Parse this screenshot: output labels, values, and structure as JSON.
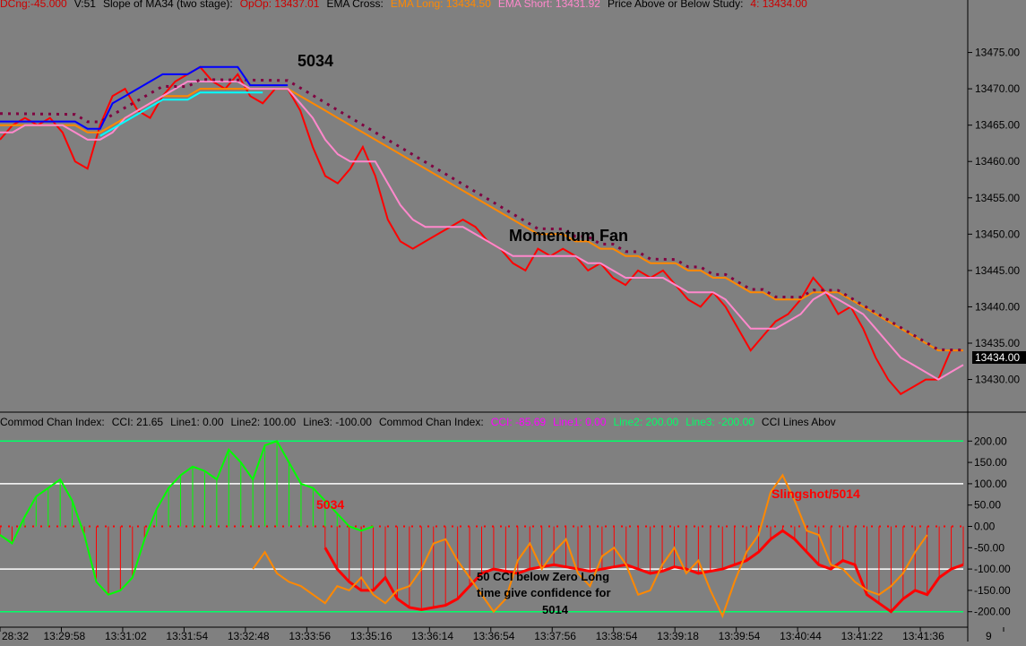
{
  "header_top": [
    {
      "text": "DCng:-45.000",
      "color": "#cc0000"
    },
    {
      "text": "V:51",
      "color": "#000000"
    },
    {
      "text": "Slope of MA34 (two stage):",
      "color": "#000000"
    },
    {
      "text": "OpOp: 13437.01",
      "color": "#cc0000"
    },
    {
      "text": "EMA Cross:",
      "color": "#000000"
    },
    {
      "text": "EMA Long: 13434.50",
      "color": "#ff8800"
    },
    {
      "text": "EMA Short: 13431.92",
      "color": "#ff88cc"
    },
    {
      "text": "Price Above or Below Study:",
      "color": "#000000"
    },
    {
      "text": "4: 13434.00",
      "color": "#cc0000"
    }
  ],
  "header_cci": [
    {
      "text": "Commod Chan Index:",
      "color": "#000000"
    },
    {
      "text": "CCI: 21.65",
      "color": "#000000"
    },
    {
      "text": "Line1: 0.00",
      "color": "#000000"
    },
    {
      "text": "Line2: 100.00",
      "color": "#000000"
    },
    {
      "text": "Line3: -100.00",
      "color": "#000000"
    },
    {
      "text": "Commod Chan Index:",
      "color": "#000000"
    },
    {
      "text": "CCI: -85.69",
      "color": "#ff00ff"
    },
    {
      "text": "Line1: 0.00",
      "color": "#ff00ff"
    },
    {
      "text": "Line2: 200.00",
      "color": "#00ff66"
    },
    {
      "text": "Line3: -200.00",
      "color": "#00ff66"
    },
    {
      "text": "CCI Lines Abov",
      "color": "#000000"
    }
  ],
  "colors": {
    "background": "#808080",
    "price": "#ff0000",
    "ema_long": "#ff8800",
    "ema_short": "#ff88cc",
    "slope_up": "#00ff00",
    "slope_strong": "#0000ff",
    "ma_cyan": "#00ffff",
    "dotted_ma": "#800040",
    "cci_line": "#ff0000",
    "cci_fast": "#ff8800",
    "cci_up": "#00ff00",
    "cci_down": "#ff00ff",
    "level_green": "#00ff66",
    "level_white": "#ffffff"
  },
  "chart_data": [
    {
      "type": "line",
      "title": "",
      "x_ticks": [
        "28:32",
        "13:29:58",
        "13:31:02",
        "13:31:54",
        "13:32:48",
        "13:33:56",
        "13:35:16",
        "13:36:14",
        "13:36:54",
        "13:37:56",
        "13:38:54",
        "13:39:18",
        "13:39:54",
        "13:40:44",
        "13:41:22",
        "13:41:36",
        "9"
      ],
      "y_ticks": [
        "13475.00",
        "13470.00",
        "13465.00",
        "13460.00",
        "13455.00",
        "13450.00",
        "13445.00",
        "13440.00",
        "13435.00",
        "13430.00"
      ],
      "ylim": [
        13426,
        13480
      ],
      "last_price_label": "13434.00",
      "annotations": [
        "5034",
        "Momentum Fan"
      ],
      "series": [
        {
          "name": "Price",
          "color": "#ff0000",
          "values": [
            13463,
            13465,
            13466,
            13465,
            13466,
            13464,
            13460,
            13459,
            13465,
            13469,
            13470,
            13467,
            13466,
            13469,
            13471,
            13472,
            13473,
            13471,
            13470,
            13472,
            13469,
            13468,
            13470,
            13470,
            13467,
            13462,
            13458,
            13457,
            13459,
            13462,
            13458,
            13452,
            13449,
            13448,
            13449,
            13450,
            13451,
            13452,
            13451,
            13449,
            13448,
            13446,
            13445,
            13448,
            13447,
            13448,
            13447,
            13445,
            13446,
            13444,
            13443,
            13445,
            13444,
            13445,
            13443,
            13441,
            13440,
            13442,
            13440,
            13437,
            13434,
            13436,
            13438,
            13439,
            13441,
            13444,
            13442,
            13439,
            13440,
            13437,
            13433,
            13430,
            13428,
            13429,
            13430,
            13430,
            13434,
            13434
          ]
        },
        {
          "name": "EMA Long",
          "color": "#ff8800",
          "values": [
            13465,
            13465,
            13465,
            13465,
            13465,
            13465,
            13465,
            13464,
            13464,
            13465,
            13466,
            13467,
            13468,
            13469,
            13469,
            13469,
            13470,
            13470,
            13470,
            13470,
            13470,
            13470,
            13470,
            13470,
            13469,
            13468,
            13467,
            13466,
            13465,
            13464,
            13463,
            13462,
            13461,
            13460,
            13459,
            13458,
            13457,
            13456,
            13455,
            13454,
            13453,
            13452,
            13451,
            13450,
            13450,
            13450,
            13449,
            13449,
            13448,
            13448,
            13447,
            13447,
            13446,
            13446,
            13446,
            13445,
            13445,
            13444,
            13444,
            13443,
            13442,
            13442,
            13441,
            13441,
            13441,
            13442,
            13442,
            13442,
            13441,
            13440,
            13439,
            13438,
            13437,
            13436,
            13435,
            13434,
            13434,
            13434
          ]
        },
        {
          "name": "EMA Short",
          "color": "#ff88cc",
          "values": [
            13464,
            13464,
            13465,
            13465,
            13465,
            13465,
            13464,
            13463,
            13463,
            13464,
            13466,
            13467,
            13468,
            13469,
            13470,
            13471,
            13471,
            13471,
            13471,
            13471,
            13470,
            13470,
            13470,
            13470,
            13468,
            13466,
            13463,
            13461,
            13460,
            13460,
            13460,
            13457,
            13454,
            13452,
            13451,
            13451,
            13451,
            13451,
            13450,
            13449,
            13448,
            13447,
            13447,
            13447,
            13447,
            13447,
            13447,
            13446,
            13446,
            13445,
            13444,
            13444,
            13444,
            13444,
            13443,
            13442,
            13442,
            13442,
            13441,
            13439,
            13437,
            13437,
            13437,
            13438,
            13439,
            13441,
            13442,
            13441,
            13440,
            13439,
            13437,
            13435,
            13433,
            13432,
            13431,
            13430,
            13431,
            13432
          ]
        }
      ]
    },
    {
      "type": "line",
      "title": "",
      "y_ticks": [
        "200.00",
        "150.00",
        "100.00",
        "50.00",
        "0.00",
        "-50.00",
        "-100.00",
        "-150.00",
        "-200.00"
      ],
      "ylim": [
        -230,
        230
      ],
      "levels": [
        200,
        100,
        0,
        -100,
        -200
      ],
      "annotations": [
        "5034",
        "50 CCI below Zero Long",
        "time give confidence for",
        "5014",
        "Slingshot/5014"
      ],
      "series": [
        {
          "name": "CCI",
          "color": "#ff0000",
          "values": [
            null,
            null,
            null,
            null,
            null,
            null,
            null,
            null,
            null,
            null,
            null,
            null,
            null,
            null,
            null,
            null,
            null,
            null,
            null,
            null,
            null,
            null,
            null,
            null,
            null,
            null,
            null,
            -50,
            -100,
            -130,
            -150,
            -150,
            -120,
            -170,
            -190,
            -195,
            -190,
            -185,
            -170,
            -140,
            -110,
            -100,
            -105,
            -110,
            -100,
            -95,
            -90,
            -95,
            -100,
            -105,
            -100,
            -95,
            -90,
            -100,
            -110,
            -105,
            -95,
            -100,
            -110,
            -105,
            -100,
            -90,
            -80,
            -60,
            -30,
            -10,
            -30,
            -60,
            -90,
            -100,
            -80,
            -90,
            -160,
            -180,
            -200,
            -170,
            -150,
            -160,
            -120,
            -100,
            -90
          ]
        },
        {
          "name": "CCI fast",
          "color": "#ff8800",
          "values": [
            null,
            null,
            null,
            null,
            null,
            null,
            null,
            null,
            null,
            null,
            null,
            null,
            null,
            null,
            null,
            null,
            null,
            null,
            null,
            null,
            null,
            -100,
            -60,
            -110,
            -130,
            -140,
            -160,
            -180,
            -140,
            -150,
            -120,
            -160,
            -180,
            -150,
            -140,
            -100,
            -40,
            -30,
            -80,
            -120,
            -160,
            -200,
            -170,
            -80,
            -40,
            -100,
            -60,
            -30,
            -110,
            -140,
            -70,
            -50,
            -90,
            -160,
            -150,
            -90,
            -50,
            -110,
            -80,
            -150,
            -210,
            -130,
            -60,
            -20,
            80,
            120,
            60,
            -10,
            -20,
            -90,
            -100,
            -130,
            -150,
            -160,
            -140,
            -110,
            -60,
            -20
          ]
        },
        {
          "name": "CCI trend",
          "color": "#00ff00",
          "values": [
            -20,
            -40,
            20,
            70,
            90,
            110,
            60,
            -20,
            -130,
            -160,
            -150,
            -120,
            -30,
            40,
            90,
            120,
            140,
            130,
            110,
            180,
            150,
            110,
            190,
            200,
            150,
            100,
            90,
            60,
            30,
            0,
            -10,
            0
          ]
        }
      ]
    }
  ]
}
